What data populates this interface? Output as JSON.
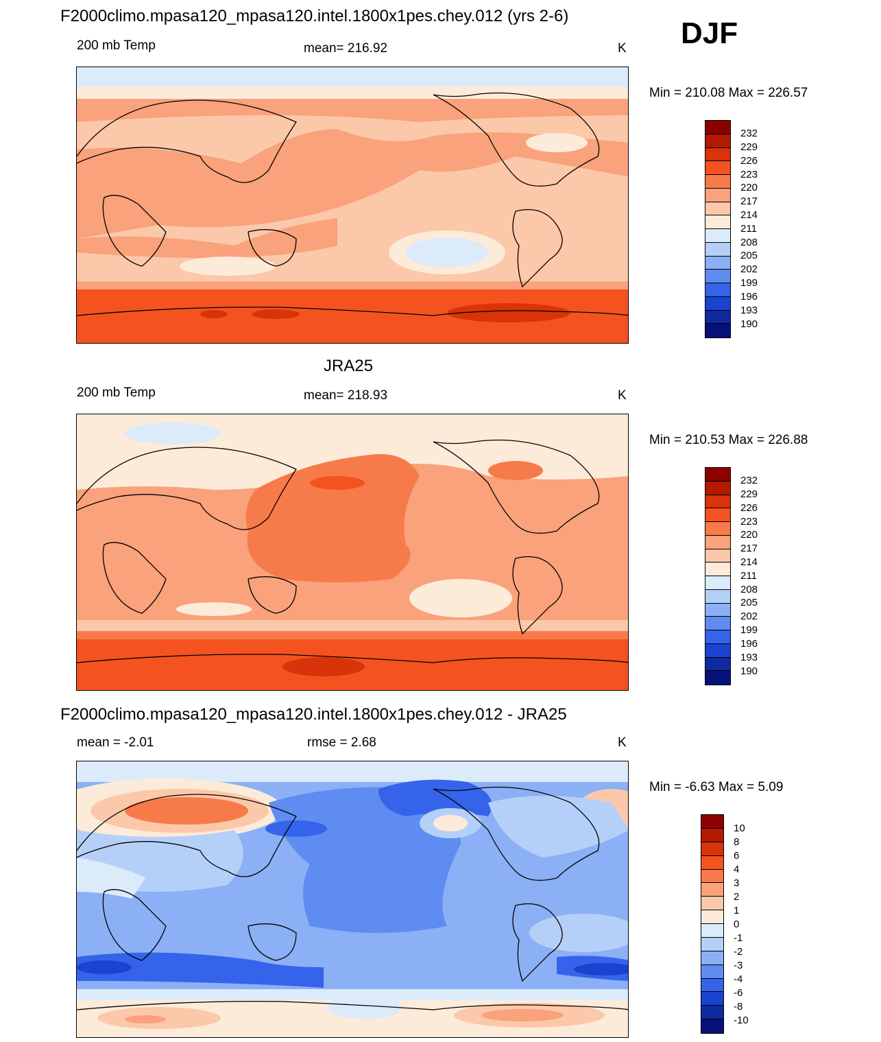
{
  "season": "DJF",
  "panels": [
    {
      "title": "F2000climo.mpasa120_mpasa120.intel.1800x1pes.chey.012 (yrs 2-6)",
      "left_label": "200 mb Temp",
      "center_label": "mean= 216.92",
      "units": "K",
      "minmax": "Min = 210.08 Max = 226.57",
      "legend": {
        "labels": [
          "232",
          "229",
          "226",
          "223",
          "220",
          "217",
          "214",
          "211",
          "208",
          "205",
          "202",
          "199",
          "196",
          "193",
          "190"
        ],
        "colors": [
          "#8c0000",
          "#b31a00",
          "#d9330a",
          "#f4531f",
          "#f77b4a",
          "#f9a27c",
          "#fcc8aa",
          "#fdebd9",
          "#dbebfa",
          "#b5d0f8",
          "#8cb0f5",
          "#5f8cf0",
          "#3564ea",
          "#1a44cf",
          "#0f2aa0",
          "#08107a"
        ]
      }
    },
    {
      "title": "JRA25",
      "left_label": "200 mb Temp",
      "center_label": "mean= 218.93",
      "units": "K",
      "minmax": "Min = 210.53 Max = 226.88",
      "legend": {
        "labels": [
          "232",
          "229",
          "226",
          "223",
          "220",
          "217",
          "214",
          "211",
          "208",
          "205",
          "202",
          "199",
          "196",
          "193",
          "190"
        ],
        "colors": [
          "#8c0000",
          "#b31a00",
          "#d9330a",
          "#f4531f",
          "#f77b4a",
          "#f9a27c",
          "#fcc8aa",
          "#fdebd9",
          "#dbebfa",
          "#b5d0f8",
          "#8cb0f5",
          "#5f8cf0",
          "#3564ea",
          "#1a44cf",
          "#0f2aa0",
          "#08107a"
        ]
      }
    },
    {
      "title": "F2000climo.mpasa120_mpasa120.intel.1800x1pes.chey.012 - JRA25",
      "left_label": "mean =  -2.01",
      "center_label": "rmse =   2.68",
      "units": "K",
      "minmax": "Min =  -6.63 Max =   5.09",
      "legend": {
        "labels": [
          "10",
          "8",
          "6",
          "4",
          "3",
          "2",
          "1",
          "0",
          "-1",
          "-2",
          "-3",
          "-4",
          "-6",
          "-8",
          "-10"
        ],
        "colors": [
          "#8c0000",
          "#b31a00",
          "#d9330a",
          "#f4531f",
          "#f77b4a",
          "#f9a27c",
          "#fcc8aa",
          "#fdebd9",
          "#dbebfa",
          "#b5d0f8",
          "#8cb0f5",
          "#5f8cf0",
          "#3564ea",
          "#1a44cf",
          "#0f2aa0",
          "#08107a"
        ]
      }
    }
  ]
}
